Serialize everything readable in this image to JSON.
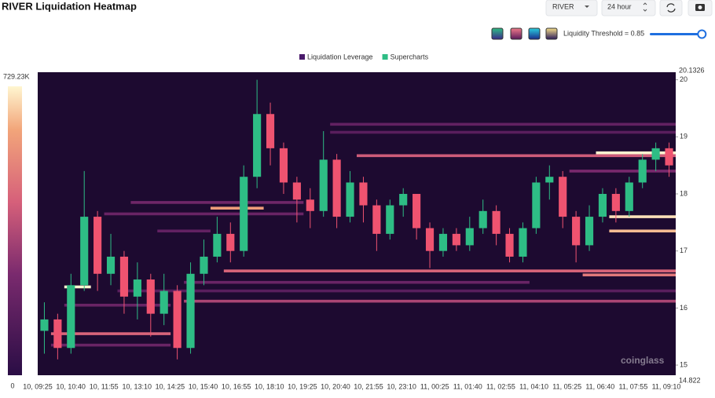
{
  "header": {
    "title": "RIVER Liquidation Heatmap",
    "symbol": "RIVER",
    "range": "24 hour",
    "threshold_label": "Liquidity Threshold = 0.85",
    "threshold": 0.85,
    "watermark": "coinglass"
  },
  "chart_data": {
    "type": "heatmap",
    "legend": [
      {
        "name": "Liquidation Leverage",
        "color": "#4a1a6b"
      },
      {
        "name": "Supercharts",
        "color": "#2ebd85"
      }
    ],
    "categories": [
      "10, 09:25",
      "10, 10:40",
      "10, 11:55",
      "10, 13:10",
      "10, 14:25",
      "10, 15:40",
      "10, 16:55",
      "10, 18:10",
      "10, 19:25",
      "10, 20:40",
      "10, 21:55",
      "10, 23:10",
      "11, 00:25",
      "11, 01:40",
      "11, 02:55",
      "11, 04:10",
      "11, 05:25",
      "11, 06:40",
      "11, 07:55",
      "11, 09:10"
    ],
    "ylim": [
      14.822,
      20.1326
    ],
    "yticks": [
      15,
      16,
      17,
      18,
      19,
      20
    ],
    "zlim": [
      0,
      729230
    ],
    "zticks": [
      0,
      {
        "value": 729230,
        "label": "729.23K"
      }
    ],
    "up_color": "#2ebd85",
    "down_color": "#ef5370",
    "open": [
      15.6,
      15.8,
      15.3,
      16.4,
      17.6,
      16.6,
      16.9,
      16.2,
      16.5,
      15.9,
      16.3,
      15.3,
      16.6,
      16.9,
      17.3,
      17.0,
      18.3,
      19.4,
      18.8,
      18.2,
      17.9,
      17.7,
      18.6,
      17.6,
      18.2,
      17.8,
      17.3,
      17.8,
      18.0,
      17.4,
      17.0,
      17.3,
      17.1,
      17.4,
      17.7,
      17.3,
      16.9,
      17.4,
      18.2,
      18.3,
      17.6,
      17.1,
      17.6,
      18.0,
      17.7,
      18.2,
      18.6,
      18.8
    ],
    "high": [
      16.1,
      15.9,
      16.6,
      18.4,
      17.7,
      17.3,
      17.0,
      16.8,
      16.6,
      16.6,
      16.4,
      16.8,
      17.2,
      17.6,
      17.5,
      18.5,
      20.0,
      19.6,
      18.9,
      18.3,
      18.1,
      19.1,
      18.7,
      18.4,
      18.3,
      17.9,
      17.9,
      18.1,
      18.0,
      17.5,
      17.4,
      17.4,
      17.6,
      17.9,
      17.8,
      17.4,
      17.5,
      18.3,
      18.5,
      18.4,
      17.7,
      17.8,
      18.1,
      18.1,
      18.3,
      18.7,
      18.9,
      18.9
    ],
    "low": [
      15.2,
      15.1,
      15.2,
      16.3,
      16.3,
      16.4,
      15.9,
      15.8,
      15.5,
      15.7,
      15.1,
      15.2,
      16.4,
      16.8,
      16.8,
      16.9,
      18.1,
      18.5,
      18.0,
      17.5,
      17.4,
      17.6,
      17.4,
      17.5,
      17.5,
      17.0,
      17.2,
      17.6,
      17.2,
      16.7,
      16.9,
      17.0,
      17.0,
      17.3,
      17.1,
      16.8,
      16.8,
      17.3,
      17.9,
      17.4,
      16.8,
      17.0,
      17.5,
      17.5,
      17.6,
      18.1,
      18.4,
      18.3
    ],
    "close": [
      15.8,
      15.3,
      16.4,
      17.6,
      16.6,
      16.9,
      16.2,
      16.5,
      15.9,
      16.3,
      15.3,
      16.6,
      16.9,
      17.3,
      17.0,
      18.3,
      19.4,
      18.8,
      18.2,
      17.9,
      17.7,
      18.6,
      17.6,
      18.2,
      17.8,
      17.3,
      17.8,
      18.0,
      17.4,
      17.0,
      17.3,
      17.1,
      17.4,
      17.7,
      17.3,
      16.9,
      17.4,
      18.2,
      18.3,
      17.6,
      17.1,
      17.6,
      18.0,
      17.7,
      18.2,
      18.6,
      18.8,
      18.5
    ],
    "levels": [
      {
        "price": 19.22,
        "from": 22,
        "to": 48,
        "value": 180000
      },
      {
        "price": 19.08,
        "from": 22,
        "to": 48,
        "value": 150000
      },
      {
        "price": 18.67,
        "from": 24,
        "to": 48,
        "value": 420000
      },
      {
        "price": 18.72,
        "from": 42,
        "to": 48,
        "value": 729230
      },
      {
        "price": 18.4,
        "from": 40,
        "to": 48,
        "value": 250000
      },
      {
        "price": 17.85,
        "from": 7,
        "to": 20,
        "value": 220000
      },
      {
        "price": 17.75,
        "from": 13,
        "to": 17,
        "value": 600000
      },
      {
        "price": 17.65,
        "from": 5,
        "to": 20,
        "value": 200000
      },
      {
        "price": 17.6,
        "from": 43,
        "to": 48,
        "value": 700000
      },
      {
        "price": 17.35,
        "from": 43,
        "to": 48,
        "value": 650000
      },
      {
        "price": 17.35,
        "from": 9,
        "to": 13,
        "value": 180000
      },
      {
        "price": 16.65,
        "from": 14,
        "to": 48,
        "value": 450000
      },
      {
        "price": 16.58,
        "from": 41,
        "to": 48,
        "value": 500000
      },
      {
        "price": 16.45,
        "from": 11,
        "to": 37,
        "value": 200000
      },
      {
        "price": 16.37,
        "from": 2,
        "to": 4,
        "value": 729230
      },
      {
        "price": 16.3,
        "from": 6,
        "to": 48,
        "value": 150000
      },
      {
        "price": 16.12,
        "from": 11,
        "to": 48,
        "value": 350000
      },
      {
        "price": 16.05,
        "from": 2,
        "to": 10,
        "value": 200000
      },
      {
        "price": 15.55,
        "from": 1,
        "to": 10,
        "value": 450000
      },
      {
        "price": 15.35,
        "from": 1,
        "to": 10,
        "value": 200000
      }
    ]
  }
}
